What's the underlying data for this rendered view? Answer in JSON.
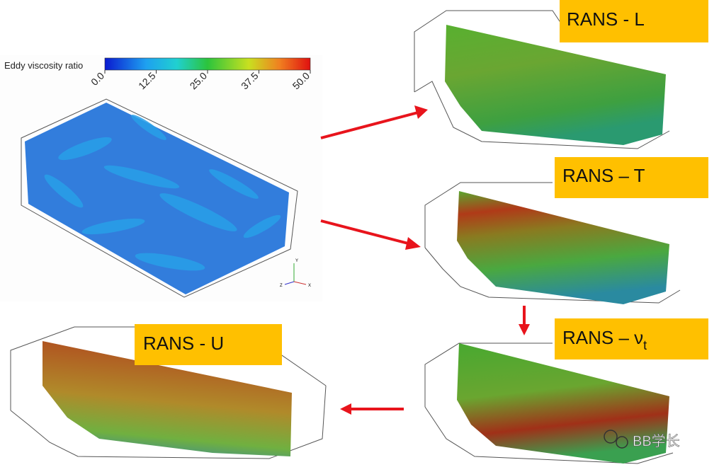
{
  "colorbar": {
    "title": "Eddy viscosity ratio",
    "ticks": [
      {
        "value": 0,
        "label": "0.0"
      },
      {
        "value": 12.5,
        "label": "12.5"
      },
      {
        "value": 25,
        "label": "25.0"
      },
      {
        "value": 37.5,
        "label": "37.5"
      },
      {
        "value": 50,
        "label": "50.0"
      }
    ],
    "range": [
      0,
      50
    ]
  },
  "axes_triad": {
    "y": "Y",
    "x": "X",
    "z": "Z"
  },
  "panels": [
    {
      "label": "RANS - L"
    },
    {
      "label": "RANS – T"
    },
    {
      "label": "RANS – ν",
      "subscript": "t"
    },
    {
      "label": "RANS - U"
    }
  ],
  "watermark": "BB学长"
}
